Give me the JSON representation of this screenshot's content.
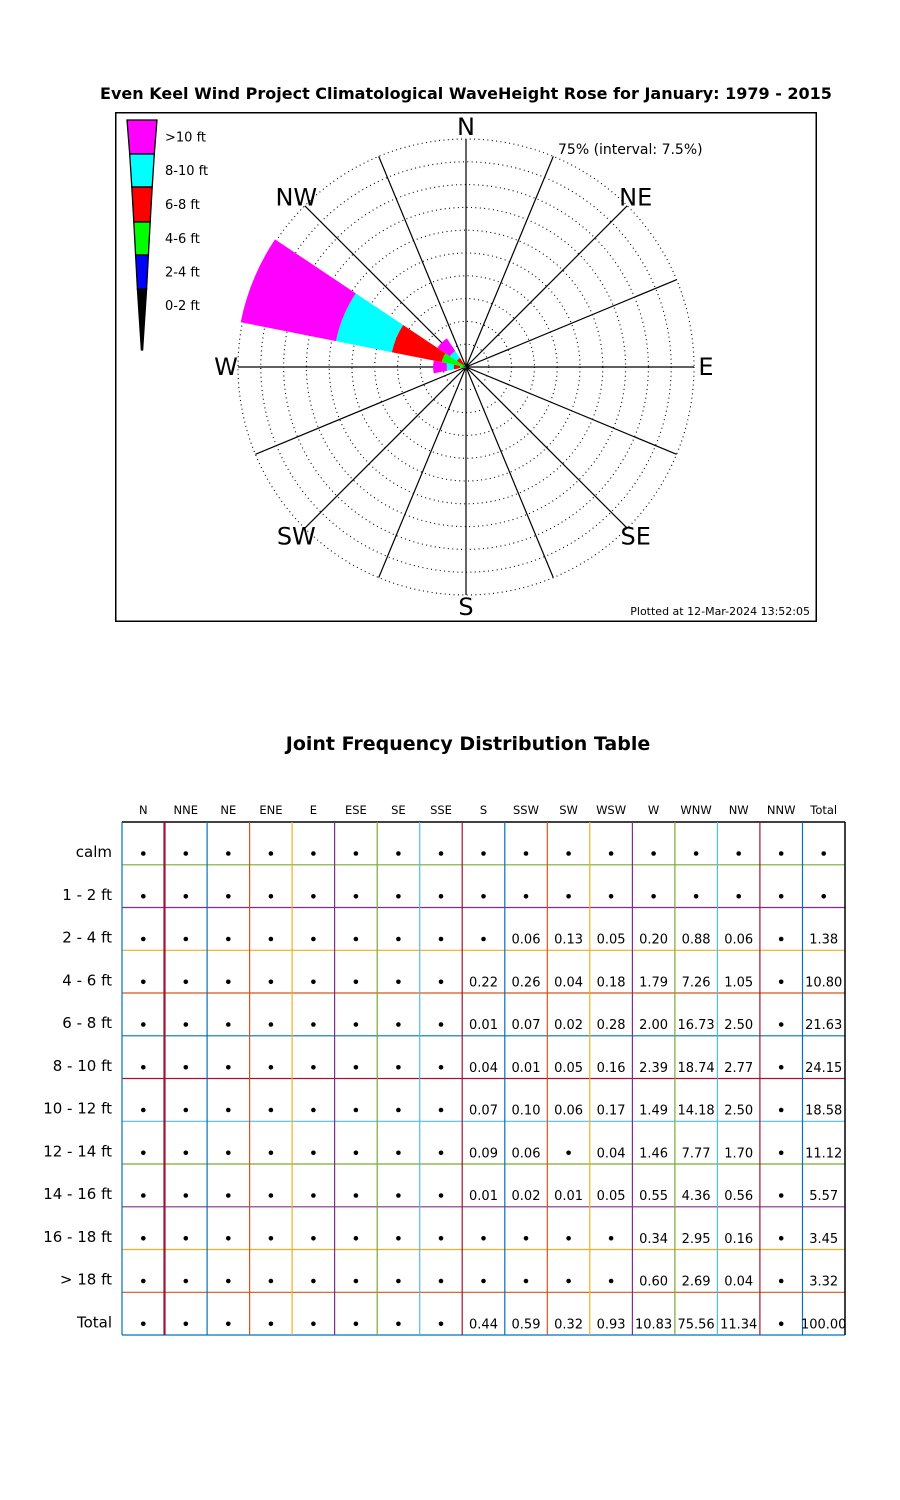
{
  "page": {
    "background": "#FFFFFF"
  },
  "chart_data": [
    {
      "type": "rose",
      "title": "Even Keel Wind Project Climatological WaveHeight Rose for January: 1979 - 2015",
      "radial_annotation": "75% (interval: 7.5%)",
      "footer": "Plotted at 12-Mar-2024 13:52:05",
      "rmax_pct": 75,
      "interval_pct": 7.5,
      "compass_labels": [
        "N",
        "NE",
        "E",
        "SE",
        "S",
        "SW",
        "W",
        "NW"
      ],
      "legend": [
        {
          "label": ">10 ft",
          "color": "#FF00FF"
        },
        {
          "label": "8-10 ft",
          "color": "#00FFFF"
        },
        {
          "label": "6-8 ft",
          "color": "#FF0000"
        },
        {
          "label": "4-6 ft",
          "color": "#00FF00"
        },
        {
          "label": "2-4 ft",
          "color": "#0000FF"
        },
        {
          "label": "0-2 ft",
          "color": "#000000"
        }
      ],
      "bins": [
        {
          "label": "0-2 ft",
          "color": "#000000"
        },
        {
          "label": "2-4 ft",
          "color": "#0000FF"
        },
        {
          "label": "4-6 ft",
          "color": "#00FF00"
        },
        {
          "label": "6-8 ft",
          "color": "#FF0000"
        },
        {
          "label": "8-10 ft",
          "color": "#00FFFF"
        },
        {
          "label": ">10 ft",
          "color": "#FF00FF"
        }
      ],
      "directions": [
        "N",
        "NNE",
        "NE",
        "ENE",
        "E",
        "ESE",
        "SE",
        "SSE",
        "S",
        "SSW",
        "SW",
        "WSW",
        "W",
        "WNW",
        "NW",
        "NNW"
      ],
      "petals_pct_by_bin": {
        "S": [
          0,
          0,
          0.22,
          0.01,
          0.04,
          0.17
        ],
        "SSW": [
          0,
          0.06,
          0.26,
          0.07,
          0.01,
          0.18
        ],
        "SW": [
          0,
          0.13,
          0.04,
          0.02,
          0.05,
          0.07
        ],
        "WSW": [
          0,
          0.05,
          0.18,
          0.28,
          0.16,
          0.26
        ],
        "W": [
          0,
          0.2,
          1.79,
          2.0,
          2.39,
          4.44
        ],
        "WNW": [
          0,
          0.88,
          7.26,
          16.73,
          18.74,
          31.95
        ],
        "NW": [
          0,
          0.06,
          1.05,
          2.5,
          2.77,
          4.96
        ]
      }
    },
    {
      "type": "table",
      "title": "Joint Frequency Distribution Table",
      "dot_symbol": "•",
      "columns": [
        "N",
        "NNE",
        "NE",
        "ENE",
        "E",
        "ESE",
        "SE",
        "SSE",
        "S",
        "SSW",
        "SW",
        "WSW",
        "W",
        "WNW",
        "NW",
        "NNW",
        "Total"
      ],
      "rows": [
        {
          "label": "calm",
          "cells": [
            null,
            null,
            null,
            null,
            null,
            null,
            null,
            null,
            null,
            null,
            null,
            null,
            null,
            null,
            null,
            null,
            null
          ]
        },
        {
          "label": "1 - 2  ft",
          "cells": [
            null,
            null,
            null,
            null,
            null,
            null,
            null,
            null,
            null,
            null,
            null,
            null,
            null,
            null,
            null,
            null,
            null
          ]
        },
        {
          "label": "2 - 4  ft",
          "cells": [
            null,
            null,
            null,
            null,
            null,
            null,
            null,
            null,
            null,
            "0.06",
            "0.13",
            "0.05",
            "0.20",
            "0.88",
            "0.06",
            null,
            "1.38"
          ]
        },
        {
          "label": "4 - 6  ft",
          "cells": [
            null,
            null,
            null,
            null,
            null,
            null,
            null,
            null,
            "0.22",
            "0.26",
            "0.04",
            "0.18",
            "1.79",
            "7.26",
            "1.05",
            null,
            "10.80"
          ]
        },
        {
          "label": "6 - 8  ft",
          "cells": [
            null,
            null,
            null,
            null,
            null,
            null,
            null,
            null,
            "0.01",
            "0.07",
            "0.02",
            "0.28",
            "2.00",
            "16.73",
            "2.50",
            null,
            "21.63"
          ]
        },
        {
          "label": "8 - 10 ft",
          "cells": [
            null,
            null,
            null,
            null,
            null,
            null,
            null,
            null,
            "0.04",
            "0.01",
            "0.05",
            "0.16",
            "2.39",
            "18.74",
            "2.77",
            null,
            "24.15"
          ]
        },
        {
          "label": "10 - 12 ft",
          "cells": [
            null,
            null,
            null,
            null,
            null,
            null,
            null,
            null,
            "0.07",
            "0.10",
            "0.06",
            "0.17",
            "1.49",
            "14.18",
            "2.50",
            null,
            "18.58"
          ]
        },
        {
          "label": "12 - 14 ft",
          "cells": [
            null,
            null,
            null,
            null,
            null,
            null,
            null,
            null,
            "0.09",
            "0.06",
            null,
            "0.04",
            "1.46",
            "7.77",
            "1.70",
            null,
            "11.12"
          ]
        },
        {
          "label": "14 - 16 ft",
          "cells": [
            null,
            null,
            null,
            null,
            null,
            null,
            null,
            null,
            "0.01",
            "0.02",
            "0.01",
            "0.05",
            "0.55",
            "4.36",
            "0.56",
            null,
            "5.57"
          ]
        },
        {
          "label": "16 - 18 ft",
          "cells": [
            null,
            null,
            null,
            null,
            null,
            null,
            null,
            null,
            null,
            null,
            null,
            null,
            "0.34",
            "2.95",
            "0.16",
            null,
            "3.45"
          ]
        },
        {
          "label": "> 18  ft",
          "cells": [
            null,
            null,
            null,
            null,
            null,
            null,
            null,
            null,
            null,
            null,
            null,
            null,
            "0.60",
            "2.69",
            "0.04",
            null,
            "3.32"
          ]
        },
        {
          "label": "Total",
          "cells": [
            null,
            null,
            null,
            null,
            null,
            null,
            null,
            null,
            "0.44",
            "0.59",
            "0.32",
            "0.93",
            "10.83",
            "75.56",
            "11.34",
            null,
            "100.00"
          ]
        }
      ],
      "line_colors": {
        "vertical": [
          "#0072BD",
          "#A2142F",
          "#0072BD",
          "#D95319",
          "#EDB120",
          "#7E2F8E",
          "#77AC30",
          "#4DBEEE",
          "#A2142F",
          "#0072BD",
          "#D95319",
          "#EDB120",
          "#7E2F8E",
          "#77AC30",
          "#4DBEEE",
          "#A2142F",
          "#0072BD",
          "#000000"
        ],
        "horizontal": [
          "#000000",
          "#77AC30",
          "#7E2F8E",
          "#EDB120",
          "#D95319",
          "#0072BD",
          "#A2142F",
          "#4DBEEE",
          "#77AC30",
          "#7E2F8E",
          "#EDB120",
          "#D95319",
          "#0072BD"
        ]
      }
    }
  ]
}
